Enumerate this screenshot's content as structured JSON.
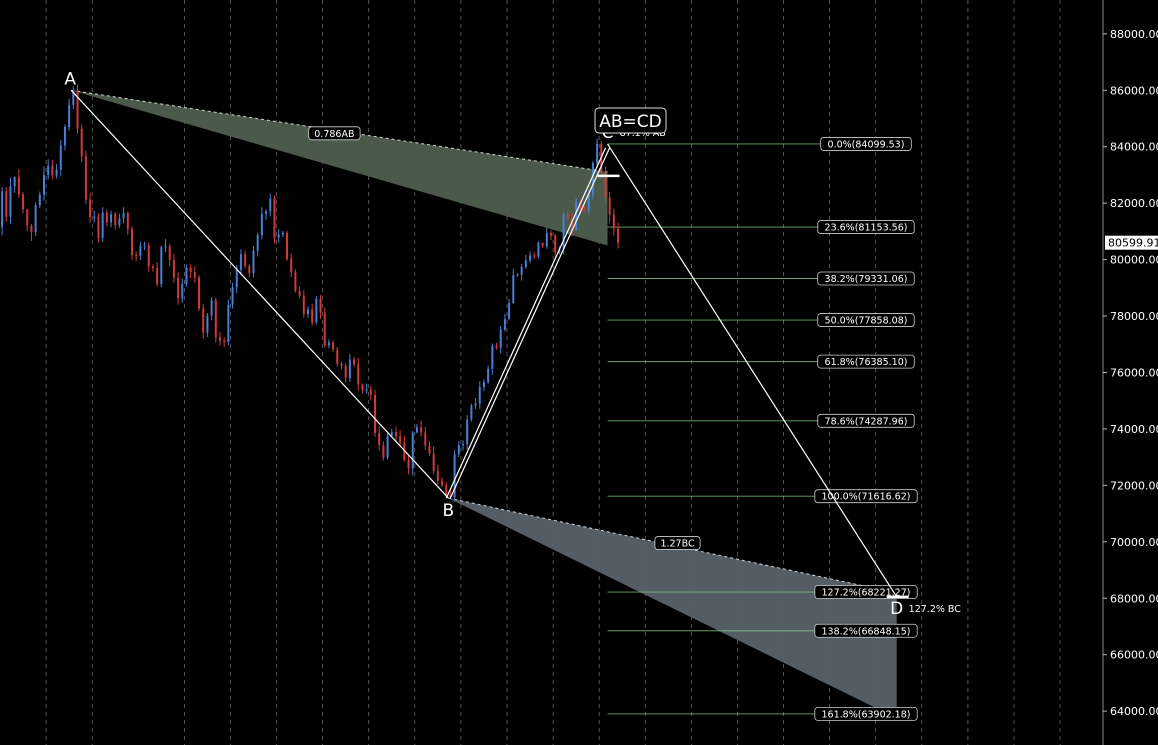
{
  "colors": {
    "background": "#000000",
    "grid": "#d8d8d8",
    "up_candle": "#4a7fd6",
    "down_candle": "#d23a3a",
    "pattern_line": "#ffffff",
    "fib_line": "#7fc27f",
    "upper_fan_fill": "#4f5e4f",
    "lower_fan_fill": "#5a6269",
    "label_box_fill": "#000000",
    "label_box_stroke": "#cfcfcf"
  },
  "chart_data": {
    "type": "candlestick",
    "title": "AB=CD",
    "y_axis": {
      "ticks": [
        "64000.00",
        "66000.00",
        "68000.00",
        "70000.00",
        "72000.00",
        "74000.00",
        "76000.00",
        "78000.00",
        "80000.00",
        "82000.00",
        "84000.00",
        "86000.00",
        "88000.00"
      ],
      "tick_values": [
        64000,
        66000,
        68000,
        70000,
        72000,
        74000,
        76000,
        78000,
        80000,
        82000,
        84000,
        86000,
        88000
      ],
      "range": [
        62800,
        89200
      ],
      "last_price_label": "80599.91",
      "last_price": 80599.91
    },
    "vertical_grid_bars": [
      11,
      22,
      44,
      55,
      66,
      77,
      88,
      99,
      110,
      121,
      132,
      143,
      154,
      165,
      176,
      187,
      198,
      209,
      220,
      231,
      242,
      253
    ],
    "x_range_bars": [
      0,
      263
    ],
    "pattern_points": [
      {
        "name": "A",
        "bar": 17,
        "price": 86000
      },
      {
        "name": "B",
        "bar": 107,
        "price": 71550
      },
      {
        "name": "C",
        "bar": 145,
        "price": 84099.53
      },
      {
        "name": "D",
        "bar": 214,
        "price": 68050
      }
    ],
    "pattern_annotations": {
      "ab_ratio": "0.786AB",
      "bc_ratio": "1.27BC",
      "c_label": "87.1% AB",
      "d_label": "127.2% BC"
    },
    "fib_levels": [
      {
        "label": "0.0%(84099.53)",
        "price": 84099.53
      },
      {
        "label": "23.6%(81153.56)",
        "price": 81153.56
      },
      {
        "label": "38.2%(79331.06)",
        "price": 79331.06
      },
      {
        "label": "50.0%(77858.08)",
        "price": 77858.08
      },
      {
        "label": "61.8%(76385.10)",
        "price": 76385.1
      },
      {
        "label": "78.6%(74287.96)",
        "price": 74287.96
      },
      {
        "label": "100.0%(71616.62)",
        "price": 71616.62
      },
      {
        "label": "127.2%(68221.27)",
        "price": 68221.27
      },
      {
        "label": "138.2%(66848.15)",
        "price": 66848.15
      },
      {
        "label": "161.8%(63902.18)",
        "price": 63902.18
      }
    ],
    "fib_start_bar": 145,
    "candles": [
      {
        "o": 81150,
        "c": 82420,
        "h": 82582,
        "l": 80862
      },
      {
        "o": 82420,
        "c": 81520,
        "h": 82562,
        "l": 81339
      },
      {
        "o": 81520,
        "c": 82600,
        "h": 82907,
        "l": 81272
      },
      {
        "o": 82600,
        "c": 82940,
        "h": 82947,
        "l": 82368
      },
      {
        "o": 82940,
        "c": 82310,
        "h": 83210,
        "l": 82190
      },
      {
        "o": 82310,
        "c": 81790,
        "h": 82394,
        "l": 81644
      },
      {
        "o": 81790,
        "c": 81210,
        "h": 81797,
        "l": 81012
      },
      {
        "o": 81210,
        "c": 80980,
        "h": 81271,
        "l": 80663
      },
      {
        "o": 80980,
        "c": 81930,
        "h": 82033,
        "l": 80834
      },
      {
        "o": 81930,
        "c": 82300,
        "h": 82418,
        "l": 81824
      },
      {
        "o": 82300,
        "c": 83000,
        "h": 83302,
        "l": 82087
      },
      {
        "o": 83000,
        "c": 83330,
        "h": 83552,
        "l": 82842
      },
      {
        "o": 83330,
        "c": 82980,
        "h": 83538,
        "l": 82843
      },
      {
        "o": 82980,
        "c": 83190,
        "h": 83382,
        "l": 82873
      },
      {
        "o": 83190,
        "c": 84050,
        "h": 84248,
        "l": 82956
      },
      {
        "o": 84050,
        "c": 84700,
        "h": 84787,
        "l": 83875
      },
      {
        "o": 84700,
        "c": 85480,
        "h": 85700,
        "l": 84578
      },
      {
        "o": 85480,
        "c": 86000,
        "h": 86138,
        "l": 85333
      },
      {
        "o": 86000,
        "c": 84640,
        "h": 86203,
        "l": 84459
      },
      {
        "o": 84640,
        "c": 83660,
        "h": 84792,
        "l": 83446
      },
      {
        "o": 83660,
        "c": 82130,
        "h": 83869,
        "l": 81976
      },
      {
        "o": 82130,
        "c": 81510,
        "h": 82372,
        "l": 81305
      },
      {
        "o": 81510,
        "c": 81520,
        "h": 81734,
        "l": 81311
      },
      {
        "o": 81520,
        "c": 80770,
        "h": 81638,
        "l": 80603
      },
      {
        "o": 80770,
        "c": 81670,
        "h": 81856,
        "l": 80624
      },
      {
        "o": 81670,
        "c": 81320,
        "h": 81778,
        "l": 81182
      },
      {
        "o": 81320,
        "c": 81610,
        "h": 81736,
        "l": 81147
      },
      {
        "o": 81610,
        "c": 81230,
        "h": 81686,
        "l": 81061
      },
      {
        "o": 81230,
        "c": 81460,
        "h": 81628,
        "l": 81126
      },
      {
        "o": 81460,
        "c": 81650,
        "h": 81861,
        "l": 81284
      },
      {
        "o": 81650,
        "c": 81080,
        "h": 81702,
        "l": 80876
      },
      {
        "o": 81080,
        "c": 80170,
        "h": 81187,
        "l": 79991
      },
      {
        "o": 80170,
        "c": 80140,
        "h": 80290,
        "l": 79941
      },
      {
        "o": 80140,
        "c": 80490,
        "h": 80636,
        "l": 79986
      },
      {
        "o": 80490,
        "c": 80500,
        "h": 80630,
        "l": 80339
      },
      {
        "o": 80500,
        "c": 79760,
        "h": 80604,
        "l": 79573
      },
      {
        "o": 79760,
        "c": 79700,
        "h": 79837,
        "l": 79579
      },
      {
        "o": 79700,
        "c": 79130,
        "h": 79917,
        "l": 79060
      },
      {
        "o": 79130,
        "c": 80440,
        "h": 80502,
        "l": 79020
      },
      {
        "o": 80440,
        "c": 80470,
        "h": 80724,
        "l": 80276
      },
      {
        "o": 80470,
        "c": 79980,
        "h": 80565,
        "l": 79760
      },
      {
        "o": 79980,
        "c": 79370,
        "h": 80211,
        "l": 79175
      },
      {
        "o": 79370,
        "c": 78620,
        "h": 79555,
        "l": 78406
      },
      {
        "o": 78620,
        "c": 79140,
        "h": 79322,
        "l": 78468
      },
      {
        "o": 79140,
        "c": 79720,
        "h": 79820,
        "l": 79040
      },
      {
        "o": 79720,
        "c": 79560,
        "h": 79835,
        "l": 79339
      },
      {
        "o": 79560,
        "c": 79360,
        "h": 79767,
        "l": 79175
      },
      {
        "o": 79360,
        "c": 78270,
        "h": 79452,
        "l": 78186
      },
      {
        "o": 78270,
        "c": 77410,
        "h": 78425,
        "l": 77200
      },
      {
        "o": 77410,
        "c": 78020,
        "h": 78106,
        "l": 77260
      },
      {
        "o": 78020,
        "c": 78560,
        "h": 78669,
        "l": 77850
      },
      {
        "o": 78560,
        "c": 77250,
        "h": 78650,
        "l": 77063
      },
      {
        "o": 77250,
        "c": 77130,
        "h": 77434,
        "l": 76944
      },
      {
        "o": 77130,
        "c": 77080,
        "h": 77258,
        "l": 76894
      },
      {
        "o": 77080,
        "c": 78400,
        "h": 78592,
        "l": 76950
      },
      {
        "o": 78400,
        "c": 79020,
        "h": 79176,
        "l": 78267
      },
      {
        "o": 79020,
        "c": 79640,
        "h": 79809,
        "l": 78809
      },
      {
        "o": 79640,
        "c": 80180,
        "h": 80369,
        "l": 79448
      },
      {
        "o": 80180,
        "c": 79770,
        "h": 80317,
        "l": 79675
      },
      {
        "o": 79770,
        "c": 79520,
        "h": 79856,
        "l": 79368
      },
      {
        "o": 79520,
        "c": 80310,
        "h": 80487,
        "l": 79366
      },
      {
        "o": 80310,
        "c": 80870,
        "h": 80950,
        "l": 80115
      },
      {
        "o": 80870,
        "c": 81620,
        "h": 81851,
        "l": 80719
      },
      {
        "o": 81620,
        "c": 81710,
        "h": 81782,
        "l": 81413
      },
      {
        "o": 81710,
        "c": 82170,
        "h": 82340,
        "l": 81531
      },
      {
        "o": 82170,
        "c": 80780,
        "h": 82269,
        "l": 80577
      },
      {
        "o": 80780,
        "c": 80890,
        "h": 81085,
        "l": 80602
      },
      {
        "o": 80890,
        "c": 80950,
        "h": 81023,
        "l": 80800
      },
      {
        "o": 80950,
        "c": 80020,
        "h": 81016,
        "l": 79956
      },
      {
        "o": 80020,
        "c": 79550,
        "h": 80212,
        "l": 79380
      },
      {
        "o": 79550,
        "c": 78890,
        "h": 79662,
        "l": 78833
      },
      {
        "o": 78890,
        "c": 78720,
        "h": 79056,
        "l": 78624
      },
      {
        "o": 78720,
        "c": 78070,
        "h": 78918,
        "l": 77939
      },
      {
        "o": 78070,
        "c": 78240,
        "h": 78346,
        "l": 77939
      },
      {
        "o": 78240,
        "c": 77780,
        "h": 78439,
        "l": 77663
      },
      {
        "o": 77780,
        "c": 78610,
        "h": 78711,
        "l": 77700
      },
      {
        "o": 78610,
        "c": 78120,
        "h": 78746,
        "l": 77904
      },
      {
        "o": 78120,
        "c": 76960,
        "h": 78309,
        "l": 76871
      },
      {
        "o": 76960,
        "c": 77070,
        "h": 77174,
        "l": 76853
      },
      {
        "o": 77070,
        "c": 76810,
        "h": 77145,
        "l": 76729
      },
      {
        "o": 76810,
        "c": 76310,
        "h": 76905,
        "l": 76211
      },
      {
        "o": 76310,
        "c": 76240,
        "h": 76386,
        "l": 76118
      },
      {
        "o": 76240,
        "c": 75800,
        "h": 76336,
        "l": 75639
      },
      {
        "o": 75800,
        "c": 76460,
        "h": 76653,
        "l": 75669
      },
      {
        "o": 76460,
        "c": 76290,
        "h": 76550,
        "l": 76188
      },
      {
        "o": 76290,
        "c": 75580,
        "h": 76518,
        "l": 75359
      },
      {
        "o": 75580,
        "c": 75370,
        "h": 75608,
        "l": 75259
      },
      {
        "o": 75370,
        "c": 75400,
        "h": 75612,
        "l": 75248
      },
      {
        "o": 75400,
        "c": 75210,
        "h": 75542,
        "l": 75010
      },
      {
        "o": 75210,
        "c": 73860,
        "h": 75383,
        "l": 73720
      },
      {
        "o": 73860,
        "c": 73430,
        "h": 74099,
        "l": 73225
      },
      {
        "o": 73430,
        "c": 72990,
        "h": 73557,
        "l": 72881
      },
      {
        "o": 72990,
        "c": 73760,
        "h": 73866,
        "l": 72912
      },
      {
        "o": 73760,
        "c": 73890,
        "h": 74009,
        "l": 73710
      },
      {
        "o": 73890,
        "c": 73740,
        "h": 74084,
        "l": 73572
      },
      {
        "o": 73740,
        "c": 73510,
        "h": 73950,
        "l": 73369
      },
      {
        "o": 73510,
        "c": 72900,
        "h": 73758,
        "l": 72841
      },
      {
        "o": 72900,
        "c": 72600,
        "h": 73048,
        "l": 72394
      },
      {
        "o": 72600,
        "c": 73870,
        "h": 73928,
        "l": 72353
      },
      {
        "o": 73870,
        "c": 74060,
        "h": 74173,
        "l": 73845
      },
      {
        "o": 74060,
        "c": 73880,
        "h": 74288,
        "l": 73726
      },
      {
        "o": 73880,
        "c": 73410,
        "h": 74081,
        "l": 73253
      },
      {
        "o": 73410,
        "c": 73130,
        "h": 73574,
        "l": 73036
      },
      {
        "o": 73130,
        "c": 72520,
        "h": 73384,
        "l": 72396
      },
      {
        "o": 72520,
        "c": 72160,
        "h": 72728,
        "l": 72036
      },
      {
        "o": 72160,
        "c": 72010,
        "h": 72287,
        "l": 71935
      },
      {
        "o": 72010,
        "c": 71680,
        "h": 72130,
        "l": 71572
      },
      {
        "o": 71680,
        "c": 71580,
        "h": 71901,
        "l": 71550
      },
      {
        "o": 71580,
        "c": 73100,
        "h": 73252,
        "l": 71423
      },
      {
        "o": 73100,
        "c": 73420,
        "h": 73574,
        "l": 73001
      },
      {
        "o": 73420,
        "c": 73460,
        "h": 73599,
        "l": 73234
      },
      {
        "o": 73460,
        "c": 74340,
        "h": 74494,
        "l": 73284
      },
      {
        "o": 74340,
        "c": 74820,
        "h": 74899,
        "l": 74260
      },
      {
        "o": 74820,
        "c": 74900,
        "h": 75096,
        "l": 74699
      },
      {
        "o": 74900,
        "c": 75480,
        "h": 75696,
        "l": 74719
      },
      {
        "o": 75480,
        "c": 75660,
        "h": 75745,
        "l": 75336
      },
      {
        "o": 75660,
        "c": 76130,
        "h": 76244,
        "l": 75600
      },
      {
        "o": 76130,
        "c": 76950,
        "h": 77030,
        "l": 75918
      },
      {
        "o": 76950,
        "c": 76880,
        "h": 77050,
        "l": 76810
      },
      {
        "o": 76880,
        "c": 77520,
        "h": 77653,
        "l": 76680
      },
      {
        "o": 77520,
        "c": 77900,
        "h": 78081,
        "l": 77455
      },
      {
        "o": 77900,
        "c": 78460,
        "h": 78604,
        "l": 77849
      },
      {
        "o": 78460,
        "c": 79450,
        "h": 79668,
        "l": 78434
      },
      {
        "o": 79450,
        "c": 79470,
        "h": 79525,
        "l": 79400
      },
      {
        "o": 79470,
        "c": 79740,
        "h": 79850,
        "l": 79253
      },
      {
        "o": 79740,
        "c": 79970,
        "h": 80166,
        "l": 79671
      },
      {
        "o": 79970,
        "c": 80150,
        "h": 80298,
        "l": 79879
      },
      {
        "o": 80150,
        "c": 80110,
        "h": 80261,
        "l": 80027
      },
      {
        "o": 80110,
        "c": 80600,
        "h": 80643,
        "l": 80041
      },
      {
        "o": 80600,
        "c": 80480,
        "h": 80599,
        "l": 80421
      },
      {
        "o": 80480,
        "c": 80940,
        "h": 81141,
        "l": 80384
      },
      {
        "o": 80940,
        "c": 80850,
        "h": 81043,
        "l": 80698
      },
      {
        "o": 80850,
        "c": 80250,
        "h": 80914,
        "l": 80012
      },
      {
        "o": 80250,
        "c": 80380,
        "h": 80479,
        "l": 80180
      },
      {
        "o": 80380,
        "c": 81620,
        "h": 81686,
        "l": 80190
      },
      {
        "o": 81620,
        "c": 81470,
        "h": 81696,
        "l": 81306
      },
      {
        "o": 81470,
        "c": 81050,
        "h": 81647,
        "l": 80821
      },
      {
        "o": 81050,
        "c": 82070,
        "h": 82178,
        "l": 81009
      },
      {
        "o": 82070,
        "c": 81780,
        "h": 82126,
        "l": 81714
      },
      {
        "o": 81780,
        "c": 81730,
        "h": 81906,
        "l": 81675
      },
      {
        "o": 81730,
        "c": 82300,
        "h": 82467,
        "l": 81630
      },
      {
        "o": 82300,
        "c": 83420,
        "h": 83501,
        "l": 82134
      },
      {
        "o": 83420,
        "c": 84099,
        "h": 84281,
        "l": 83250
      },
      {
        "o": 84099,
        "c": 83100,
        "h": 84200,
        "l": 82850
      },
      {
        "o": 83100,
        "c": 82200,
        "h": 83300,
        "l": 82000
      },
      {
        "o": 82200,
        "c": 81600,
        "h": 82400,
        "l": 81300
      },
      {
        "o": 81600,
        "c": 81100,
        "h": 81800,
        "l": 80850
      },
      {
        "o": 81100,
        "c": 80600,
        "h": 81300,
        "l": 80400
      }
    ]
  }
}
